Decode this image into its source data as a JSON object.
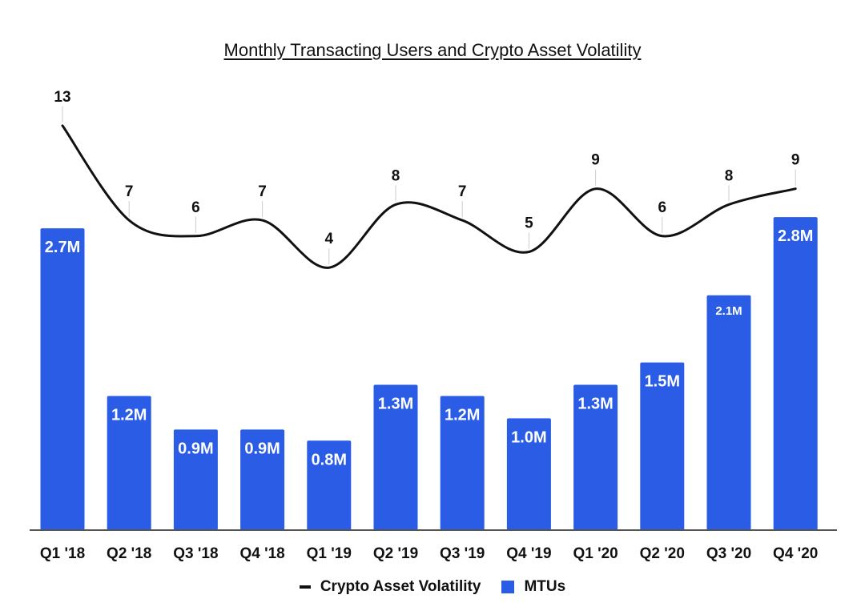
{
  "chart_data": {
    "type": "bar",
    "title": "Monthly Transacting Users and Crypto Asset Volatility",
    "categories": [
      "Q1 '18",
      "Q2 '18",
      "Q3 '18",
      "Q4 '18",
      "Q1 '19",
      "Q2 '19",
      "Q3 '19",
      "Q4 '19",
      "Q1 '20",
      "Q2 '20",
      "Q3 '20",
      "Q4 '20"
    ],
    "series": [
      {
        "name": "MTUs",
        "kind": "bar",
        "color": "#2a5ce6",
        "values": [
          2.7,
          1.2,
          0.9,
          0.9,
          0.8,
          1.3,
          1.2,
          1.0,
          1.3,
          1.5,
          2.1,
          2.8
        ],
        "labels": [
          "2.7M",
          "1.2M",
          "0.9M",
          "0.9M",
          "0.8M",
          "1.3M",
          "1.2M",
          "1.0M",
          "1.3M",
          "1.5M",
          "2.1M",
          "2.8M"
        ]
      },
      {
        "name": "Crypto Asset Volatility",
        "kind": "line",
        "color": "#111111",
        "values": [
          13,
          7,
          6,
          7,
          4,
          8,
          7,
          5,
          9,
          6,
          8,
          9
        ]
      }
    ],
    "xlabel": "",
    "ylabel": "",
    "grid": false,
    "legend_position": "bottom-center"
  },
  "legend": {
    "line_label": "Crypto Asset Volatility",
    "bar_label": "MTUs"
  }
}
